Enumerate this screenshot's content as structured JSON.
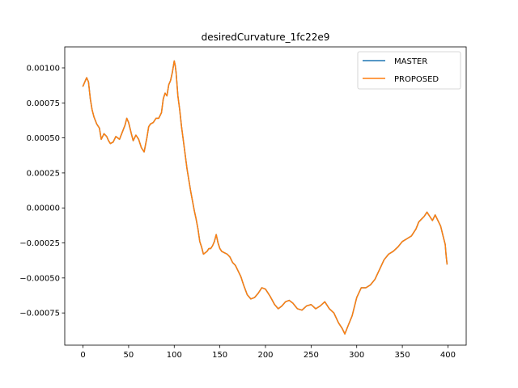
{
  "chart_data": {
    "type": "line",
    "title": "desiredCurvature_1fc22e9",
    "xlabel": "",
    "ylabel": "",
    "xlim": [
      -20,
      420
    ],
    "ylim": [
      -0.00098,
      0.00115
    ],
    "x_ticks": [
      0,
      50,
      100,
      150,
      200,
      250,
      300,
      350,
      400
    ],
    "x_tick_labels": [
      "0",
      "50",
      "100",
      "150",
      "200",
      "250",
      "300",
      "350",
      "400"
    ],
    "y_ticks": [
      0.001,
      0.00075,
      0.0005,
      0.00025,
      0.0,
      -0.00025,
      -0.0005,
      -0.00075
    ],
    "y_tick_labels": [
      "0.00100",
      "0.00075",
      "0.00050",
      "0.00025",
      "0.00000",
      "−0.00025",
      "−0.00050",
      "−0.00075"
    ],
    "grid": false,
    "legend_position": "top-right",
    "series": [
      {
        "name": "MASTER",
        "color": "#1f77b4",
        "x": [
          0,
          2,
          4,
          6,
          8,
          10,
          12,
          15,
          18,
          20,
          23,
          26,
          28,
          30,
          33,
          36,
          40,
          43,
          46,
          48,
          50,
          53,
          55,
          58,
          61,
          64,
          67,
          70,
          72,
          74,
          77,
          80,
          83,
          86,
          88,
          90,
          92,
          94,
          96,
          98,
          100,
          101,
          102,
          104,
          106,
          108,
          110,
          112,
          114,
          116,
          118,
          120,
          122,
          124,
          126,
          128,
          130,
          132,
          134,
          136,
          138,
          140,
          142,
          144,
          146,
          148,
          150,
          152,
          155,
          158,
          161,
          164,
          167,
          170,
          173,
          176,
          180,
          184,
          188,
          192,
          196,
          200,
          205,
          210,
          214,
          218,
          222,
          226,
          230,
          235,
          240,
          245,
          250,
          255,
          260,
          265,
          270,
          275,
          280,
          284,
          287,
          290,
          295,
          300,
          305,
          310,
          315,
          320,
          325,
          330,
          335,
          340,
          345,
          350,
          355,
          360,
          365,
          368,
          371,
          374,
          377,
          380,
          383,
          386,
          389,
          392,
          395,
          397,
          398,
          399
        ],
        "y": [
          0.00087,
          0.0009,
          0.00093,
          0.0009,
          0.00078,
          0.0007,
          0.00065,
          0.0006,
          0.00057,
          0.00049,
          0.00053,
          0.00051,
          0.00048,
          0.00046,
          0.00047,
          0.00051,
          0.00049,
          0.00054,
          0.00059,
          0.00064,
          0.00061,
          0.00053,
          0.00048,
          0.00052,
          0.00049,
          0.00043,
          0.0004,
          0.0005,
          0.00058,
          0.0006,
          0.00061,
          0.00064,
          0.00064,
          0.00068,
          0.00078,
          0.00082,
          0.0008,
          0.00088,
          0.00091,
          0.00097,
          0.00105,
          0.00102,
          0.00097,
          0.0008,
          0.0007,
          0.00058,
          0.00048,
          0.00038,
          0.00028,
          0.0002,
          0.00012,
          5e-05,
          -2e-05,
          -8e-05,
          -0.00015,
          -0.00024,
          -0.00028,
          -0.00033,
          -0.00032,
          -0.00031,
          -0.00029,
          -0.00029,
          -0.00027,
          -0.00024,
          -0.00019,
          -0.00025,
          -0.00029,
          -0.00031,
          -0.00032,
          -0.00033,
          -0.00035,
          -0.00039,
          -0.00041,
          -0.00045,
          -0.00049,
          -0.00055,
          -0.00062,
          -0.00065,
          -0.00064,
          -0.00061,
          -0.00057,
          -0.00058,
          -0.00063,
          -0.00069,
          -0.00072,
          -0.0007,
          -0.00067,
          -0.00066,
          -0.00068,
          -0.00072,
          -0.00073,
          -0.0007,
          -0.00069,
          -0.00072,
          -0.0007,
          -0.00067,
          -0.00072,
          -0.00075,
          -0.00082,
          -0.00086,
          -0.0009,
          -0.00085,
          -0.00077,
          -0.00064,
          -0.00057,
          -0.00057,
          -0.00055,
          -0.00051,
          -0.00044,
          -0.00037,
          -0.00033,
          -0.00031,
          -0.00028,
          -0.00024,
          -0.00022,
          -0.0002,
          -0.00015,
          -0.0001,
          -8e-05,
          -6e-05,
          -3e-05,
          -6e-05,
          -9e-05,
          -5e-05,
          -9e-05,
          -0.00013,
          -0.00021,
          -0.00026,
          -0.00034,
          -0.0004
        ]
      },
      {
        "name": "PROPOSED",
        "color": "#ff7f0e",
        "x": [
          0,
          2,
          4,
          6,
          8,
          10,
          12,
          15,
          18,
          20,
          23,
          26,
          28,
          30,
          33,
          36,
          40,
          43,
          46,
          48,
          50,
          53,
          55,
          58,
          61,
          64,
          67,
          70,
          72,
          74,
          77,
          80,
          83,
          86,
          88,
          90,
          92,
          94,
          96,
          98,
          100,
          101,
          102,
          104,
          106,
          108,
          110,
          112,
          114,
          116,
          118,
          120,
          122,
          124,
          126,
          128,
          130,
          132,
          134,
          136,
          138,
          140,
          142,
          144,
          146,
          148,
          150,
          152,
          155,
          158,
          161,
          164,
          167,
          170,
          173,
          176,
          180,
          184,
          188,
          192,
          196,
          200,
          205,
          210,
          214,
          218,
          222,
          226,
          230,
          235,
          240,
          245,
          250,
          255,
          260,
          265,
          270,
          275,
          280,
          284,
          287,
          290,
          295,
          300,
          305,
          310,
          315,
          320,
          325,
          330,
          335,
          340,
          345,
          350,
          355,
          360,
          365,
          368,
          371,
          374,
          377,
          380,
          383,
          386,
          389,
          392,
          395,
          397,
          398,
          399
        ],
        "y": [
          0.00087,
          0.0009,
          0.00093,
          0.0009,
          0.00078,
          0.0007,
          0.00065,
          0.0006,
          0.00057,
          0.00049,
          0.00053,
          0.00051,
          0.00048,
          0.00046,
          0.00047,
          0.00051,
          0.00049,
          0.00054,
          0.00059,
          0.00064,
          0.00061,
          0.00053,
          0.00048,
          0.00052,
          0.00049,
          0.00043,
          0.0004,
          0.0005,
          0.00058,
          0.0006,
          0.00061,
          0.00064,
          0.00064,
          0.00068,
          0.00078,
          0.00082,
          0.0008,
          0.00088,
          0.00091,
          0.00097,
          0.00105,
          0.00102,
          0.00097,
          0.0008,
          0.0007,
          0.00058,
          0.00048,
          0.00038,
          0.00028,
          0.0002,
          0.00012,
          5e-05,
          -2e-05,
          -8e-05,
          -0.00015,
          -0.00024,
          -0.00028,
          -0.00033,
          -0.00032,
          -0.00031,
          -0.00029,
          -0.00029,
          -0.00027,
          -0.00024,
          -0.00019,
          -0.00025,
          -0.00029,
          -0.00031,
          -0.00032,
          -0.00033,
          -0.00035,
          -0.00039,
          -0.00041,
          -0.00045,
          -0.00049,
          -0.00055,
          -0.00062,
          -0.00065,
          -0.00064,
          -0.00061,
          -0.00057,
          -0.00058,
          -0.00063,
          -0.00069,
          -0.00072,
          -0.0007,
          -0.00067,
          -0.00066,
          -0.00068,
          -0.00072,
          -0.00073,
          -0.0007,
          -0.00069,
          -0.00072,
          -0.0007,
          -0.00067,
          -0.00072,
          -0.00075,
          -0.00082,
          -0.00086,
          -0.0009,
          -0.00085,
          -0.00077,
          -0.00064,
          -0.00057,
          -0.00057,
          -0.00055,
          -0.00051,
          -0.00044,
          -0.00037,
          -0.00033,
          -0.00031,
          -0.00028,
          -0.00024,
          -0.00022,
          -0.0002,
          -0.00015,
          -0.0001,
          -8e-05,
          -6e-05,
          -3e-05,
          -6e-05,
          -9e-05,
          -5e-05,
          -9e-05,
          -0.00013,
          -0.00021,
          -0.00026,
          -0.00034,
          -0.0004
        ]
      }
    ]
  }
}
